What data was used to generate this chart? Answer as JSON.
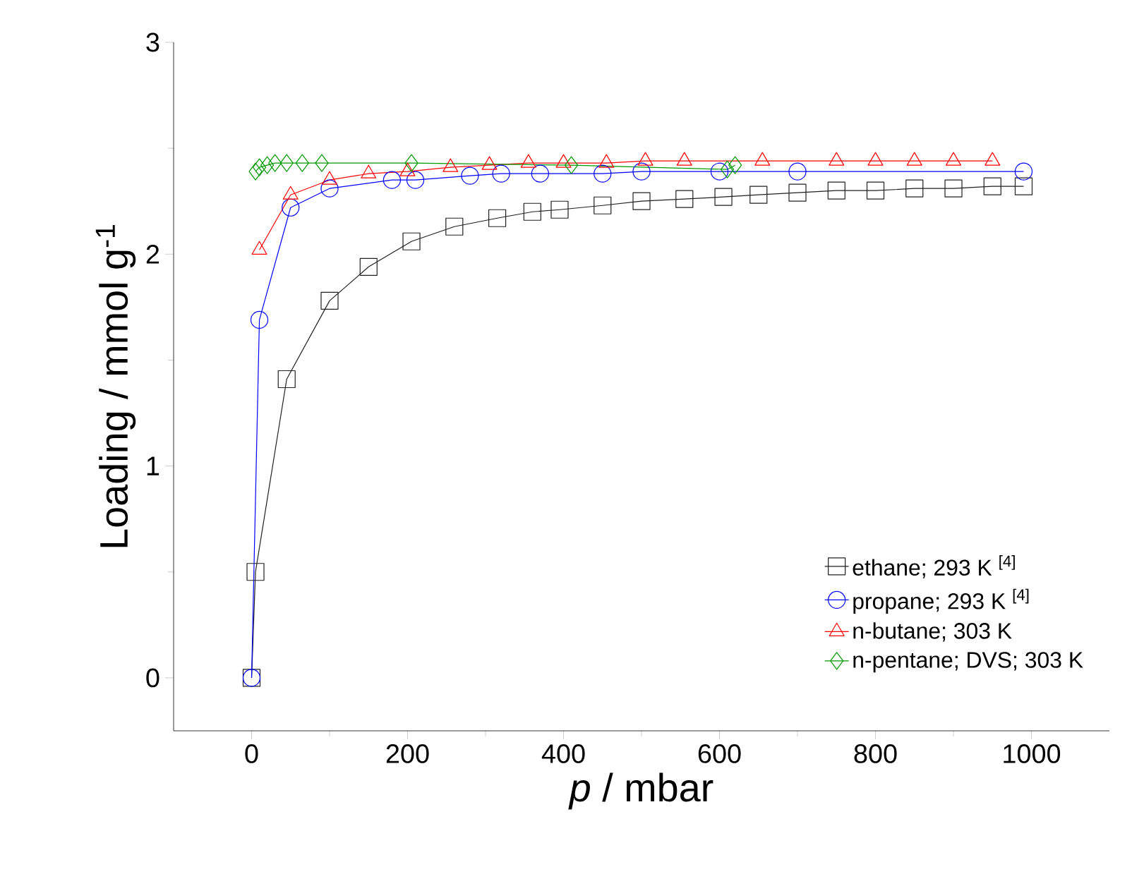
{
  "chart_data": {
    "type": "line",
    "xlabel": "*p* / mbar",
    "ylabel": "Loading / mmol g$^{-1}$",
    "xlim": [
      -100,
      1100
    ],
    "ylim": [
      -0.25,
      3
    ],
    "xticks": [
      0,
      200,
      400,
      600,
      800,
      1000
    ],
    "yticks": [
      0,
      1,
      2,
      3
    ],
    "legend": "bottom right",
    "grid": false,
    "line_style": "solid",
    "series": [
      {
        "name": "ethane; 293 K $^{[4]}$",
        "color": "#202020",
        "marker": "square",
        "x": [
          0,
          5,
          45,
          100,
          150,
          205,
          260,
          315,
          360,
          395,
          450,
          500,
          555,
          605,
          650,
          700,
          750,
          800,
          850,
          900,
          950,
          990
        ],
        "values": [
          0,
          0.5,
          1.41,
          1.78,
          1.94,
          2.06,
          2.13,
          2.17,
          2.2,
          2.21,
          2.23,
          2.25,
          2.26,
          2.27,
          2.28,
          2.29,
          2.3,
          2.3,
          2.31,
          2.31,
          2.32,
          2.32
        ]
      },
      {
        "name": "propane; 293 K $^{[4]}$",
        "color": "#0000ff",
        "marker": "circle",
        "x": [
          0,
          10,
          50,
          100,
          180,
          210,
          280,
          320,
          370,
          450,
          500,
          600,
          700,
          990
        ],
        "values": [
          0,
          1.69,
          2.22,
          2.31,
          2.35,
          2.35,
          2.37,
          2.38,
          2.38,
          2.38,
          2.39,
          2.39,
          2.39,
          2.39
        ]
      },
      {
        "name": "n-butane; 303 K",
        "color": "#ff0000",
        "marker": "triangle",
        "x": [
          10,
          50,
          100,
          150,
          200,
          255,
          305,
          355,
          400,
          455,
          505,
          555,
          655,
          750,
          800,
          850,
          900,
          950
        ],
        "values": [
          2.02,
          2.28,
          2.35,
          2.38,
          2.39,
          2.41,
          2.42,
          2.43,
          2.43,
          2.43,
          2.44,
          2.44,
          2.44,
          2.44,
          2.44,
          2.44,
          2.44,
          2.44
        ]
      },
      {
        "name": "n-pentane; DVS; 303 K",
        "color": "#009900",
        "marker": "diamond",
        "x": [
          5,
          10,
          20,
          30,
          45,
          65,
          90,
          205,
          410,
          610,
          620
        ],
        "values": [
          2.39,
          2.41,
          2.42,
          2.43,
          2.43,
          2.43,
          2.43,
          2.43,
          2.42,
          2.4,
          2.42
        ]
      }
    ]
  }
}
